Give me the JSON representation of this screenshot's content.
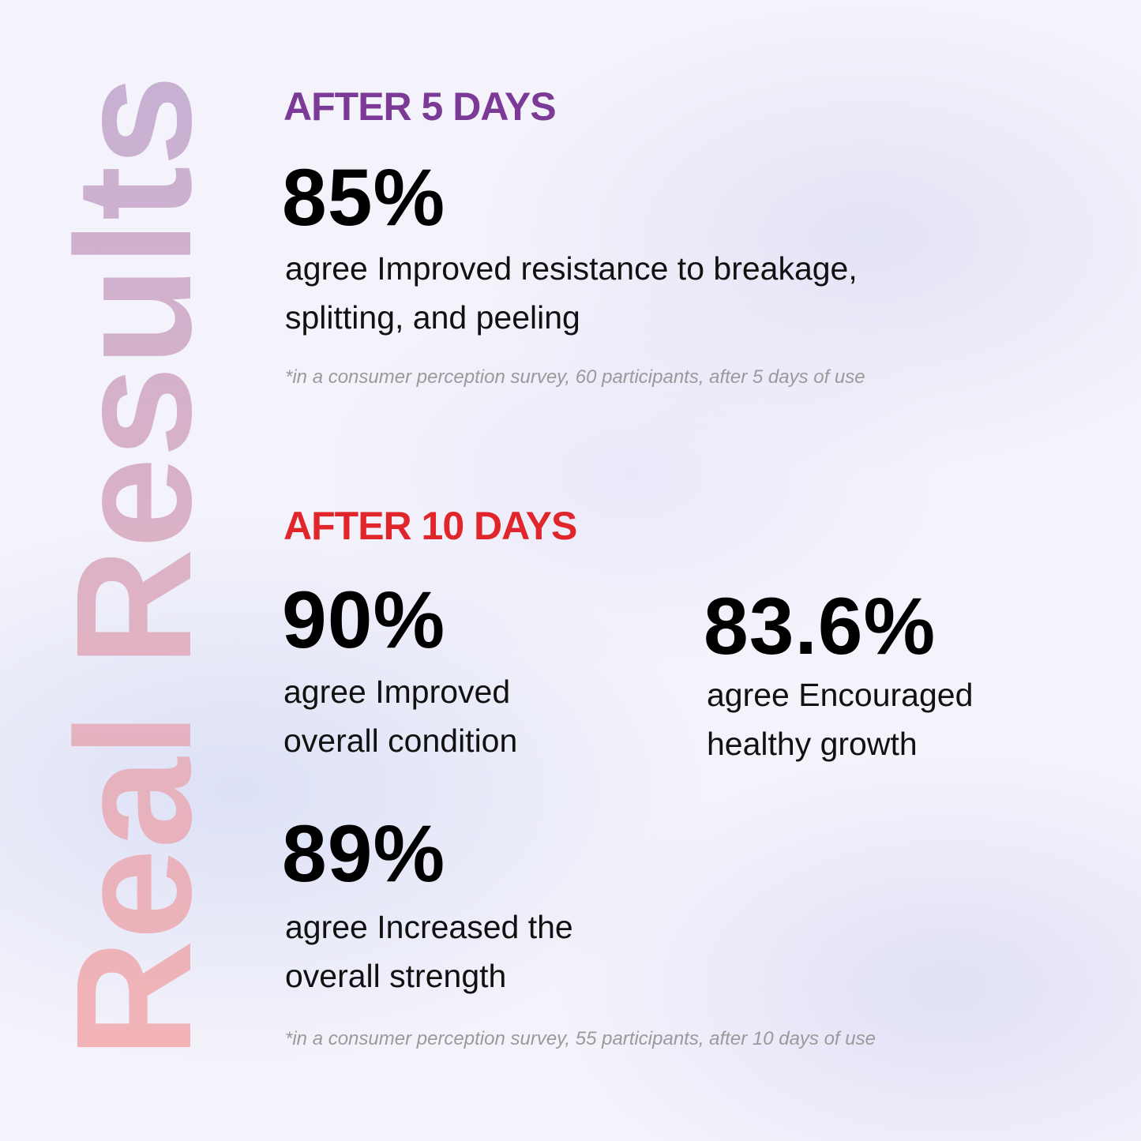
{
  "side_title": "Real Results",
  "colors": {
    "day5": "#7b3a96",
    "day10": "#e0262a",
    "side_gradient_top": "#c7b0d3",
    "side_gradient_bottom": "#f2b3b6"
  },
  "day5": {
    "heading": "AFTER 5 DAYS",
    "stat": {
      "value": "85%",
      "line1": "agree Improved resistance to breakage,",
      "line2": "splitting, and peeling"
    },
    "footnote": "*in a consumer perception survey, 60 participants, after 5 days of use"
  },
  "day10": {
    "heading": "AFTER 10 DAYS",
    "stats": [
      {
        "value": "90%",
        "line1": "agree Improved",
        "line2": "overall condition"
      },
      {
        "value": "83.6%",
        "line1": "agree Encouraged",
        "line2": "healthy growth"
      },
      {
        "value": "89%",
        "line1": "agree Increased the",
        "line2": "overall strength"
      }
    ],
    "footnote": "*in a consumer perception survey, 55 participants, after 10 days of use"
  }
}
